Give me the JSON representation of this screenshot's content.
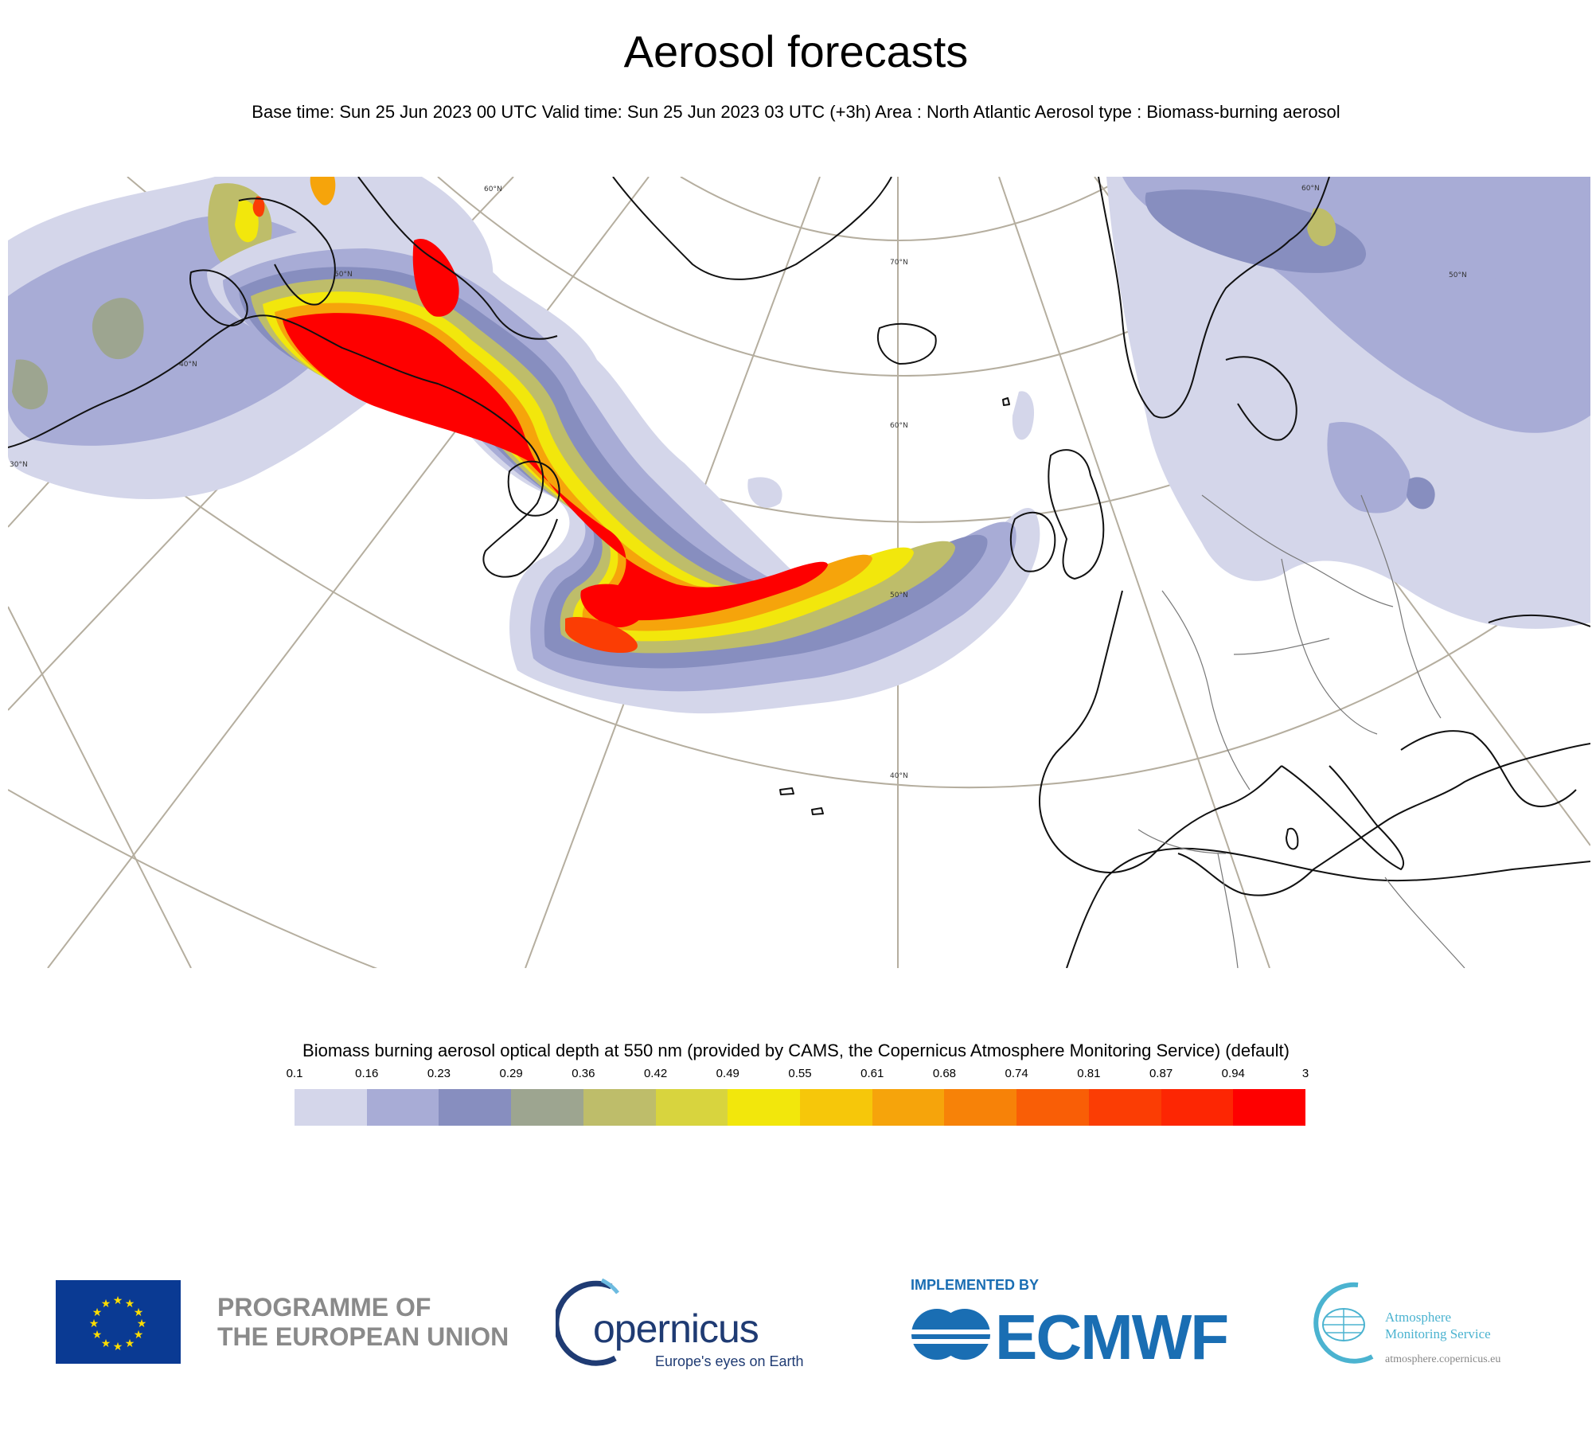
{
  "title": "Aerosol forecasts",
  "subtitle": "Base time: Sun 25 Jun 2023 00 UTC Valid time: Sun 25 Jun 2023 03 UTC (+3h) Area : North Atlantic Aerosol type : Biomass-burning aerosol",
  "map": {
    "lat_labels": [
      "60°N",
      "70°N",
      "60°N",
      "50°N",
      "40°N",
      "50°N",
      "40°N",
      "30°N",
      "60°N",
      "50°N"
    ],
    "colors": {
      "land_outline": "#111111",
      "graticule": "#b5ae9f",
      "ocean": "#ffffff"
    }
  },
  "legend": {
    "title": "Biomass burning aerosol optical depth at 550 nm (provided by CAMS, the Copernicus Atmosphere Monitoring Service) (default)",
    "levels": [
      "0.1",
      "0.16",
      "0.23",
      "0.29",
      "0.36",
      "0.42",
      "0.49",
      "0.55",
      "0.61",
      "0.68",
      "0.74",
      "0.81",
      "0.87",
      "0.94",
      "3"
    ],
    "colors": [
      "#d4d6ea",
      "#a8acd6",
      "#878ebf",
      "#9da590",
      "#bebd6a",
      "#d8d43e",
      "#f2e70c",
      "#f6c70a",
      "#f6a40b",
      "#f78208",
      "#f95e06",
      "#fb3d04",
      "#fd2603",
      "#fe0000"
    ]
  },
  "logos": {
    "eu_line1": "PROGRAMME OF",
    "eu_line2": "THE EUROPEAN UNION",
    "copernicus_word": "opernicus",
    "copernicus_tagline": "Europe's eyes on Earth",
    "ecmwf_implemented": "IMPLEMENTED BY",
    "ecmwf_word": "ECMWF",
    "cams_line1": "Atmosphere",
    "cams_line2": "Monitoring Service",
    "cams_url": "atmosphere.copernicus.eu"
  }
}
